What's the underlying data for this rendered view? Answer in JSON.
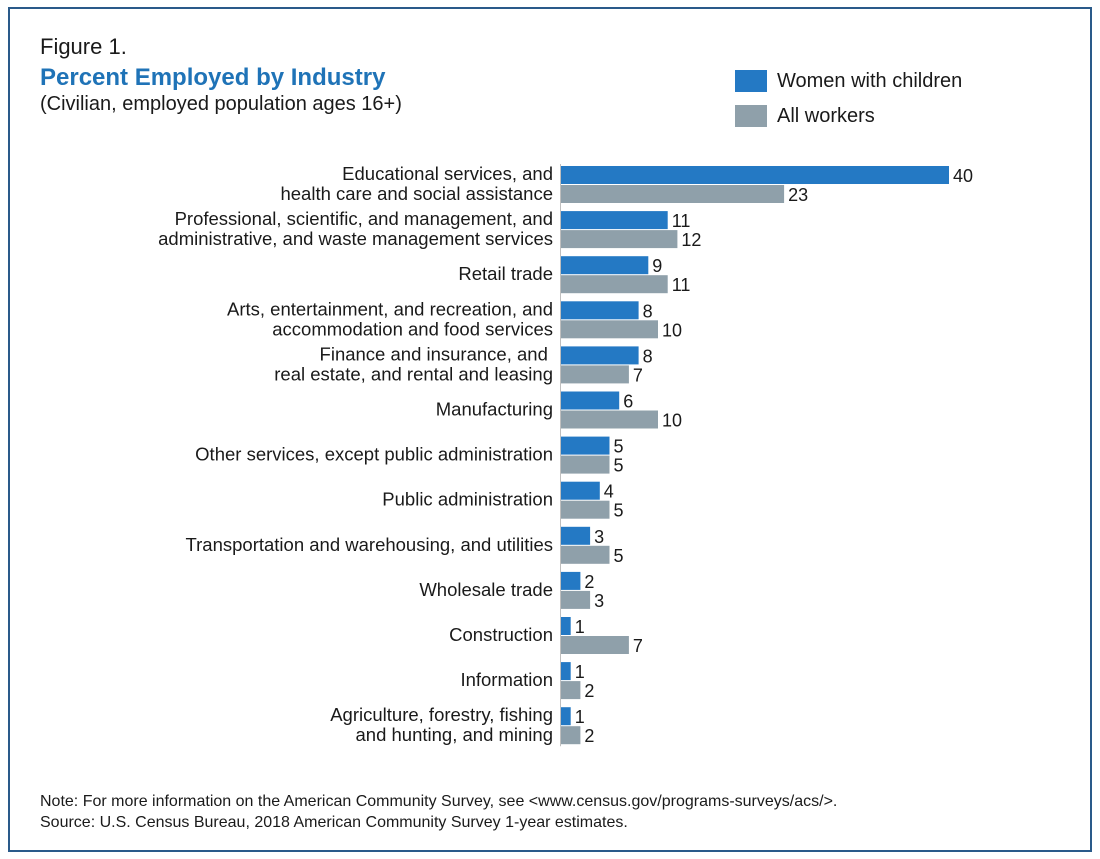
{
  "figure_label": "Figure 1.",
  "title": "Percent Employed by Industry",
  "subtitle": "(Civilian, employed population ages 16+)",
  "legend": [
    {
      "label": "Women with children",
      "color": "#2479c4"
    },
    {
      "label": "All workers",
      "color": "#8fa0aa"
    }
  ],
  "notes": {
    "note": "Note: For more information on the American Community Survey, see <www.census.gov/programs-surveys/acs/>.",
    "source": "Source: U.S. Census Bureau, 2018 American Community Survey 1-year estimates."
  },
  "chart_data": {
    "type": "bar",
    "orientation": "horizontal",
    "title": "Percent Employed by Industry",
    "subtitle": "(Civilian, employed population ages 16+)",
    "categories": [
      [
        "Educational services, and",
        "health care and social assistance"
      ],
      [
        "Professional, scientific, and management, and",
        "administrative, and waste management services"
      ],
      [
        "Retail trade"
      ],
      [
        "Arts, entertainment, and recreation, and",
        "accommodation and food services"
      ],
      [
        "Finance and insurance, and ",
        "real estate, and rental and leasing"
      ],
      [
        "Manufacturing"
      ],
      [
        "Other services, except public administration"
      ],
      [
        "Public administration"
      ],
      [
        "Transportation and warehousing, and utilities"
      ],
      [
        "Wholesale trade"
      ],
      [
        "Construction"
      ],
      [
        "Information"
      ],
      [
        "Agriculture, forestry, fishing",
        "and hunting, and mining"
      ]
    ],
    "series": [
      {
        "name": "Women with children",
        "color": "#2479c4",
        "values": [
          40,
          11,
          9,
          8,
          8,
          6,
          5,
          4,
          3,
          2,
          1,
          1,
          1
        ]
      },
      {
        "name": "All workers",
        "color": "#8fa0aa",
        "values": [
          23,
          12,
          11,
          10,
          7,
          10,
          5,
          5,
          5,
          3,
          7,
          2,
          2
        ]
      }
    ],
    "xlim": [
      0,
      40
    ],
    "grid": false,
    "legend_position": "top-right",
    "data_labels": true
  }
}
